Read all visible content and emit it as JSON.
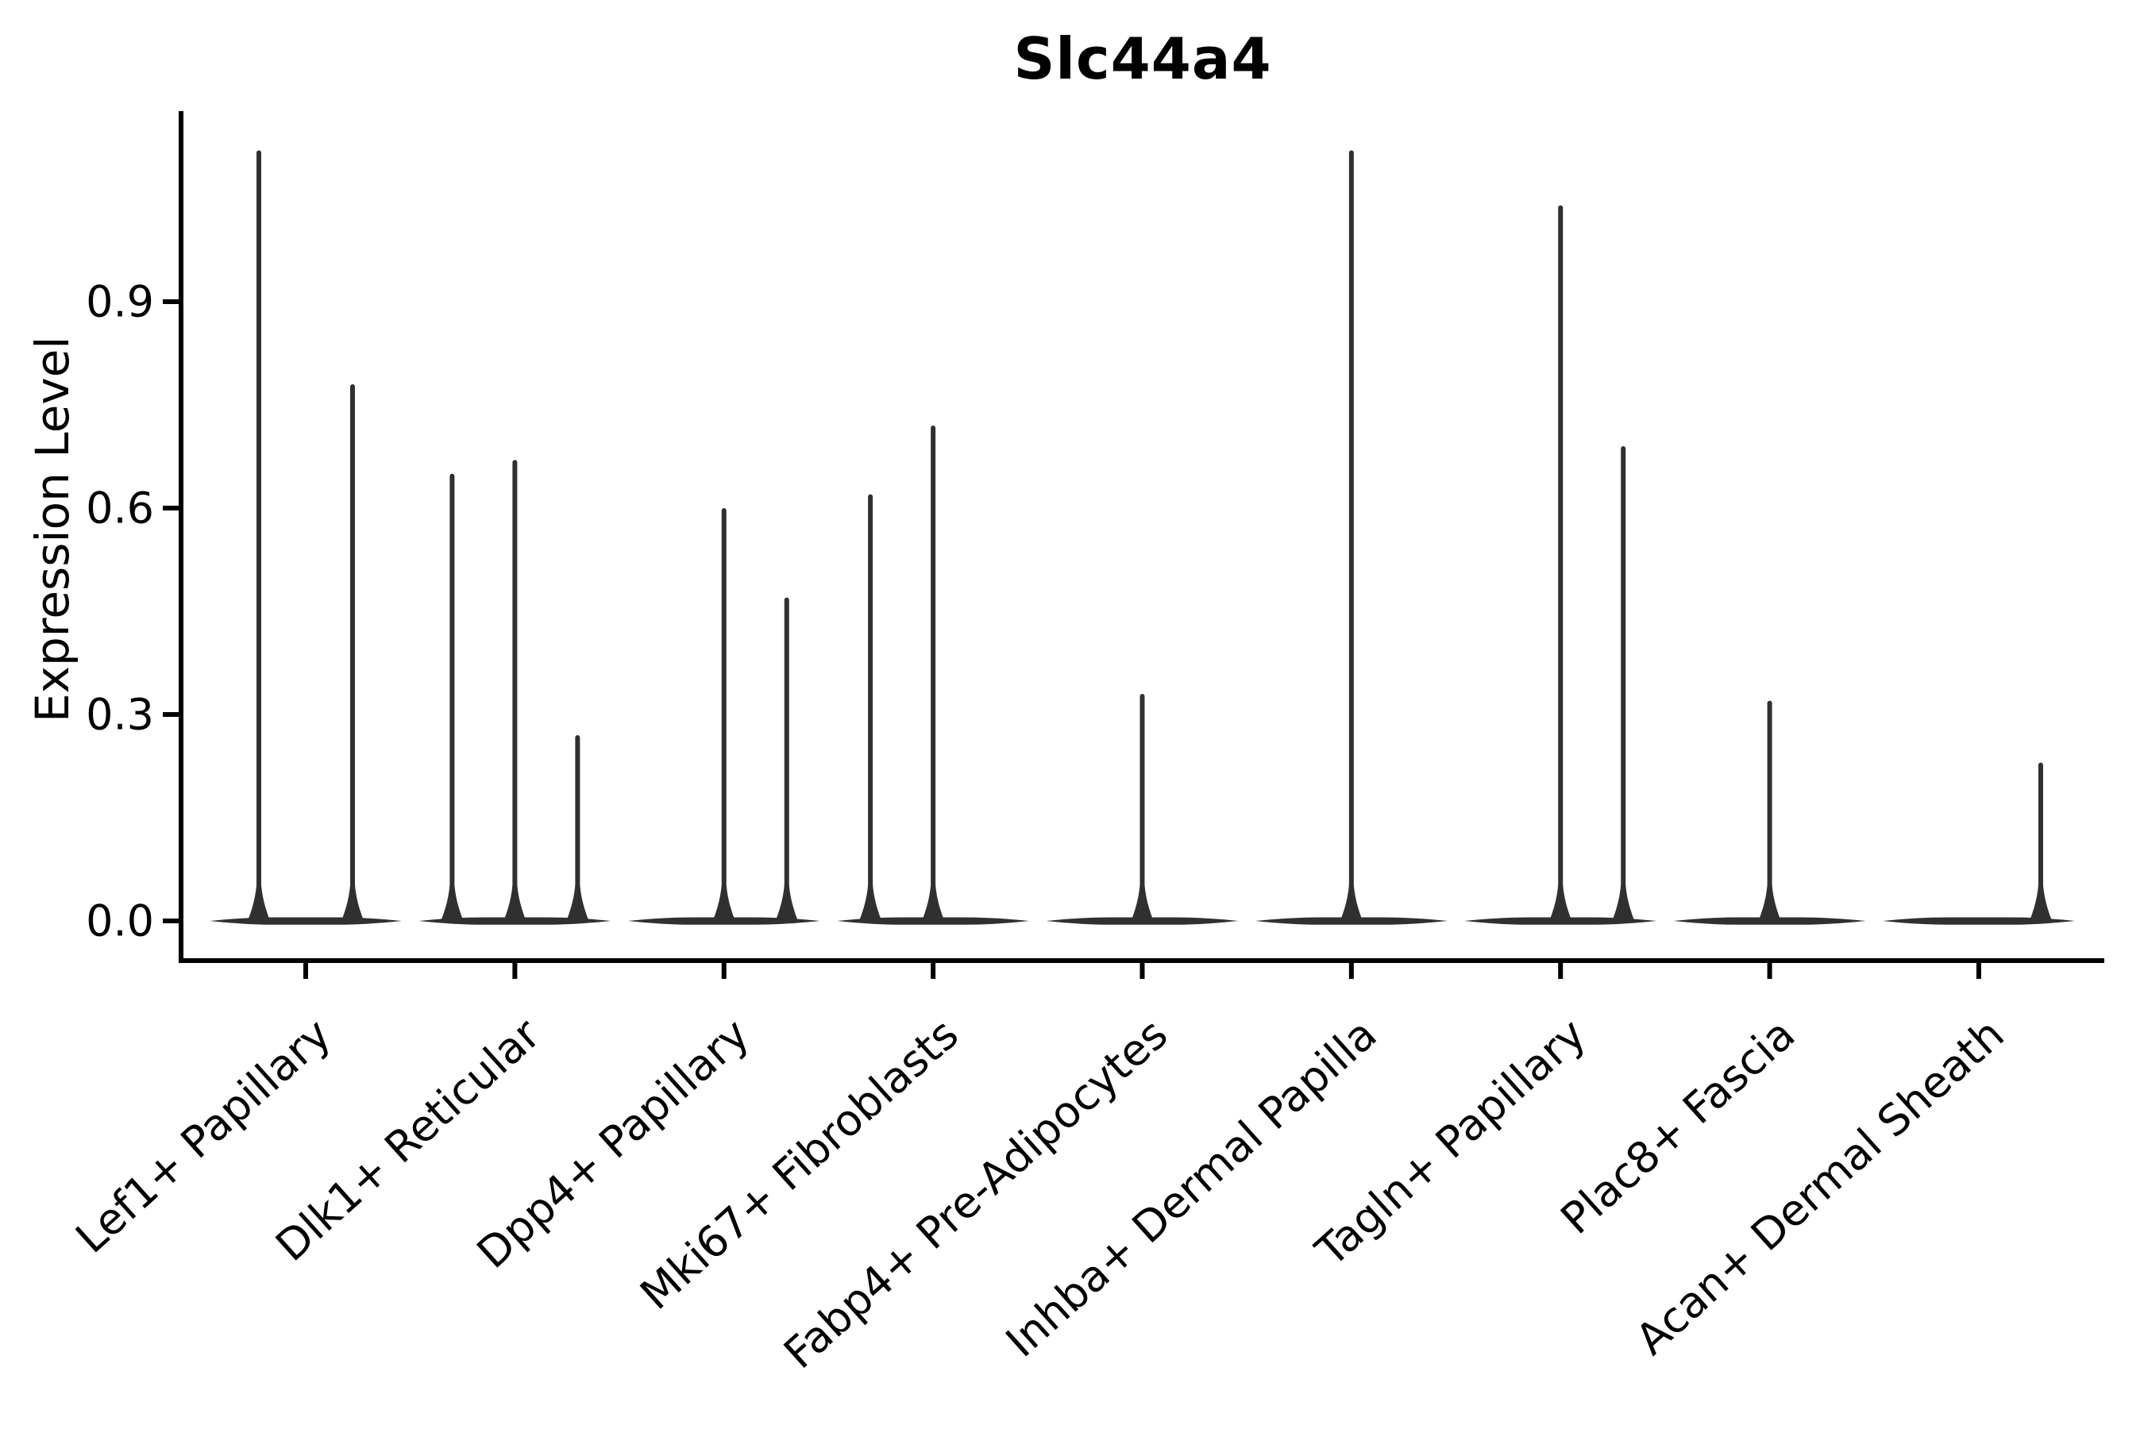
{
  "title": "Slc44a4",
  "axes": {
    "y_label": "Expression Level"
  },
  "chart_data": {
    "type": "violin",
    "title": "Slc44a4",
    "xlabel": "",
    "ylabel": "Expression Level",
    "ylim": [
      -0.057,
      1.177
    ],
    "yticks": [
      0,
      0.3,
      0.6,
      0.9
    ],
    "ytick_labels": [
      "0.0",
      "0.3",
      "0.6",
      "0.9"
    ],
    "grid": false,
    "legend": "none",
    "x_label_rotation_deg": -42,
    "categories": [
      "Lef1+ Papillary",
      "Dlk1+ Reticular",
      "Dpp4+ Papillary",
      "Mki67+ Fibroblasts",
      "Fabp4+ Pre-Adipocytes",
      "Inhba+ Dermal Papilla",
      "Tagln+ Papillary",
      "Plac8+ Fascia",
      "Acan+ Dermal Sheath"
    ],
    "description": "Violin plot of Slc44a4 expression; each category shows a flat density mass at expression 0 with thin spikes reaching the maximum expression of sub-violins (dodge offset dx in px from category center).",
    "series": [
      {
        "category": "Lef1+ Papillary",
        "violins": [
          {
            "dx": -59,
            "max": 1.12
          },
          {
            "dx": 59,
            "max": 0.78
          }
        ]
      },
      {
        "category": "Dlk1+ Reticular",
        "violins": [
          {
            "dx": -79,
            "max": 0.65
          },
          {
            "dx": 0,
            "max": 0.67
          },
          {
            "dx": 79,
            "max": 0.27
          }
        ]
      },
      {
        "category": "Dpp4+ Papillary",
        "violins": [
          {
            "dx": 0,
            "max": 0.6
          },
          {
            "dx": 79,
            "max": 0.47
          }
        ]
      },
      {
        "category": "Mki67+ Fibroblasts",
        "violins": [
          {
            "dx": -79,
            "max": 0.62
          },
          {
            "dx": 0,
            "max": 0.72
          }
        ]
      },
      {
        "category": "Fabp4+ Pre-Adipocytes",
        "violins": [
          {
            "dx": 0,
            "max": 0.33
          }
        ]
      },
      {
        "category": "Inhba+ Dermal Papilla",
        "violins": [
          {
            "dx": 0,
            "max": 1.12
          }
        ]
      },
      {
        "category": "Tagln+ Papillary",
        "violins": [
          {
            "dx": 0,
            "max": 1.04
          },
          {
            "dx": 79,
            "max": 0.69
          }
        ]
      },
      {
        "category": "Plac8+ Fascia",
        "violins": [
          {
            "dx": 0,
            "max": 0.32
          }
        ]
      },
      {
        "category": "Acan+ Dermal Sheath",
        "violins": [
          {
            "dx": 78,
            "max": 0.23
          }
        ]
      }
    ],
    "baseline_density_value": 0.0
  },
  "colors": {
    "violin_fill": "#303030",
    "axis": "#000000",
    "text": "#000000",
    "background": "#ffffff"
  }
}
